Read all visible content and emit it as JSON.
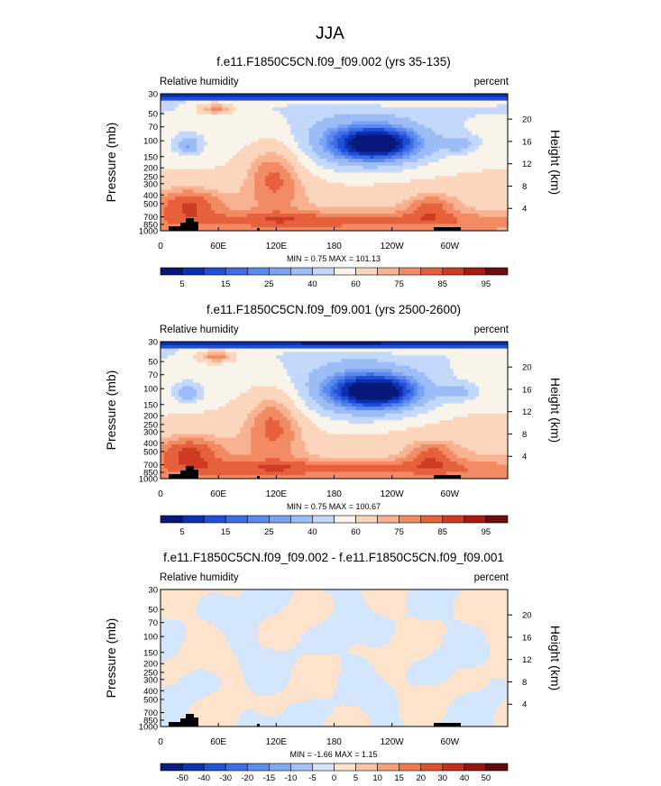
{
  "page_title": "JJA",
  "chart_data": [
    {
      "type": "heatmap",
      "title": "f.e11.F1850C5CN.f09_f09.002 (yrs 35-135)",
      "left_label": "Relative humidity",
      "right_label": "percent",
      "ylabel": "Pressure (mb)",
      "ylabel_right": "Height (km)",
      "stats": "MIN =   0.75  MAX = 101.13",
      "x_ticks": [
        "0",
        "60E",
        "120E",
        "180",
        "120W",
        "60W"
      ],
      "y_ticks": [
        "30",
        "50",
        "70",
        "100",
        "150",
        "200",
        "250",
        "300",
        "400",
        "500",
        "700",
        "850",
        "1000"
      ],
      "y_ticks_right": [
        "20",
        "16",
        "12",
        "8",
        "4"
      ],
      "xlim": [
        0,
        360
      ],
      "ylim": [
        1000,
        30
      ],
      "colorbar_labels": [
        "5",
        "15",
        "25",
        "40",
        "60",
        "75",
        "85",
        "95"
      ],
      "colorbar_levels": [
        5,
        10,
        15,
        20,
        25,
        30,
        40,
        50,
        60,
        70,
        75,
        80,
        85,
        90,
        95
      ],
      "diverging": false
    },
    {
      "type": "heatmap",
      "title": "f.e11.F1850C5CN.f09_f09.001 (yrs 2500-2600)",
      "left_label": "Relative humidity",
      "right_label": "percent",
      "ylabel": "Pressure (mb)",
      "ylabel_right": "Height (km)",
      "stats": "MIN =   0.75  MAX = 100.67",
      "x_ticks": [
        "0",
        "60E",
        "120E",
        "180",
        "120W",
        "60W"
      ],
      "y_ticks": [
        "30",
        "50",
        "70",
        "100",
        "150",
        "200",
        "250",
        "300",
        "400",
        "500",
        "700",
        "850",
        "1000"
      ],
      "y_ticks_right": [
        "20",
        "16",
        "12",
        "8",
        "4"
      ],
      "xlim": [
        0,
        360
      ],
      "ylim": [
        1000,
        30
      ],
      "colorbar_labels": [
        "5",
        "15",
        "25",
        "40",
        "60",
        "75",
        "85",
        "95"
      ],
      "colorbar_levels": [
        5,
        10,
        15,
        20,
        25,
        30,
        40,
        50,
        60,
        70,
        75,
        80,
        85,
        90,
        95
      ],
      "diverging": false
    },
    {
      "type": "heatmap",
      "title": "f.e11.F1850C5CN.f09_f09.002 - f.e11.F1850C5CN.f09_f09.001",
      "left_label": "Relative humidity",
      "right_label": "percent",
      "ylabel": "Pressure (mb)",
      "ylabel_right": "Height (km)",
      "stats": "MIN =  -1.66  MAX =   1.15",
      "x_ticks": [
        "0",
        "60E",
        "120E",
        "180",
        "120W",
        "60W"
      ],
      "y_ticks": [
        "30",
        "50",
        "70",
        "100",
        "150",
        "200",
        "250",
        "300",
        "400",
        "500",
        "700",
        "850",
        "1000"
      ],
      "y_ticks_right": [
        "20",
        "16",
        "12",
        "8",
        "4"
      ],
      "xlim": [
        0,
        360
      ],
      "ylim": [
        1000,
        30
      ],
      "colorbar_labels": [
        "-50",
        "-40",
        "-30",
        "-20",
        "-15",
        "-10",
        "-5",
        "0",
        "5",
        "10",
        "15",
        "20",
        "30",
        "40",
        "50"
      ],
      "colorbar_levels": [
        -50,
        -40,
        -30,
        -20,
        -15,
        -10,
        -5,
        0,
        5,
        10,
        15,
        20,
        30,
        40,
        50
      ],
      "diverging": true
    }
  ],
  "colors": {
    "seq": [
      "#08187a",
      "#0c2fb0",
      "#1f4fd6",
      "#3d6ce6",
      "#5a88ee",
      "#7ba2f2",
      "#9cbcf5",
      "#c3d8fa",
      "#f9f4ea",
      "#fbd6bd",
      "#f8b291",
      "#f28b63",
      "#e6603c",
      "#cf3a23",
      "#a71b14",
      "#6f0c0c"
    ],
    "div": [
      "#0a1f7f",
      "#1233b0",
      "#2452d6",
      "#3e6fe6",
      "#5d8cee",
      "#80a8f3",
      "#a6c4f7",
      "#d3e6fc",
      "#fde2cc",
      "#fbc4a4",
      "#f7a17b",
      "#ef7a52",
      "#de5232",
      "#c12f1f",
      "#951612",
      "#600a0a"
    ],
    "topo": "#000000"
  }
}
